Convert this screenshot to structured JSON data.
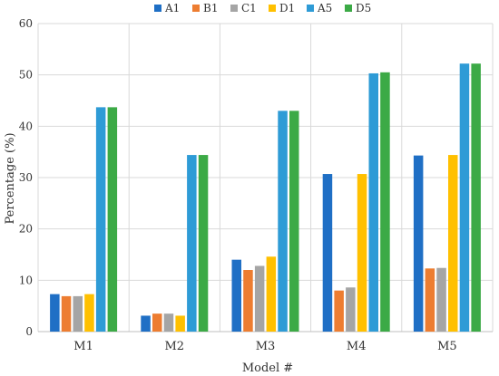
{
  "chart_data": {
    "type": "bar",
    "title": "",
    "xlabel": "Model #",
    "ylabel": "Percentage (%)",
    "categories": [
      "M1",
      "M2",
      "M3",
      "M4",
      "M5"
    ],
    "ylim": [
      0,
      60
    ],
    "yticks": [
      "0",
      "10",
      "20",
      "30",
      "40",
      "50",
      "60"
    ],
    "grid": true,
    "legend": "top",
    "series": [
      {
        "name": "A1",
        "color": "#1f6fc5",
        "values": [
          7.3,
          3.1,
          14.0,
          30.7,
          34.3
        ]
      },
      {
        "name": "B1",
        "color": "#ed7d31",
        "values": [
          6.9,
          3.5,
          12.0,
          8.0,
          12.3
        ]
      },
      {
        "name": "C1",
        "color": "#a5a5a5",
        "values": [
          6.9,
          3.5,
          12.8,
          8.6,
          12.4
        ]
      },
      {
        "name": "D1",
        "color": "#ffc000",
        "values": [
          7.3,
          3.1,
          14.6,
          30.7,
          34.4
        ]
      },
      {
        "name": "A5",
        "color": "#2e9bd6",
        "values": [
          43.7,
          34.4,
          43.0,
          50.3,
          52.2
        ]
      },
      {
        "name": "D5",
        "color": "#3caa46",
        "values": [
          43.7,
          34.4,
          43.0,
          50.5,
          52.2
        ]
      }
    ]
  }
}
